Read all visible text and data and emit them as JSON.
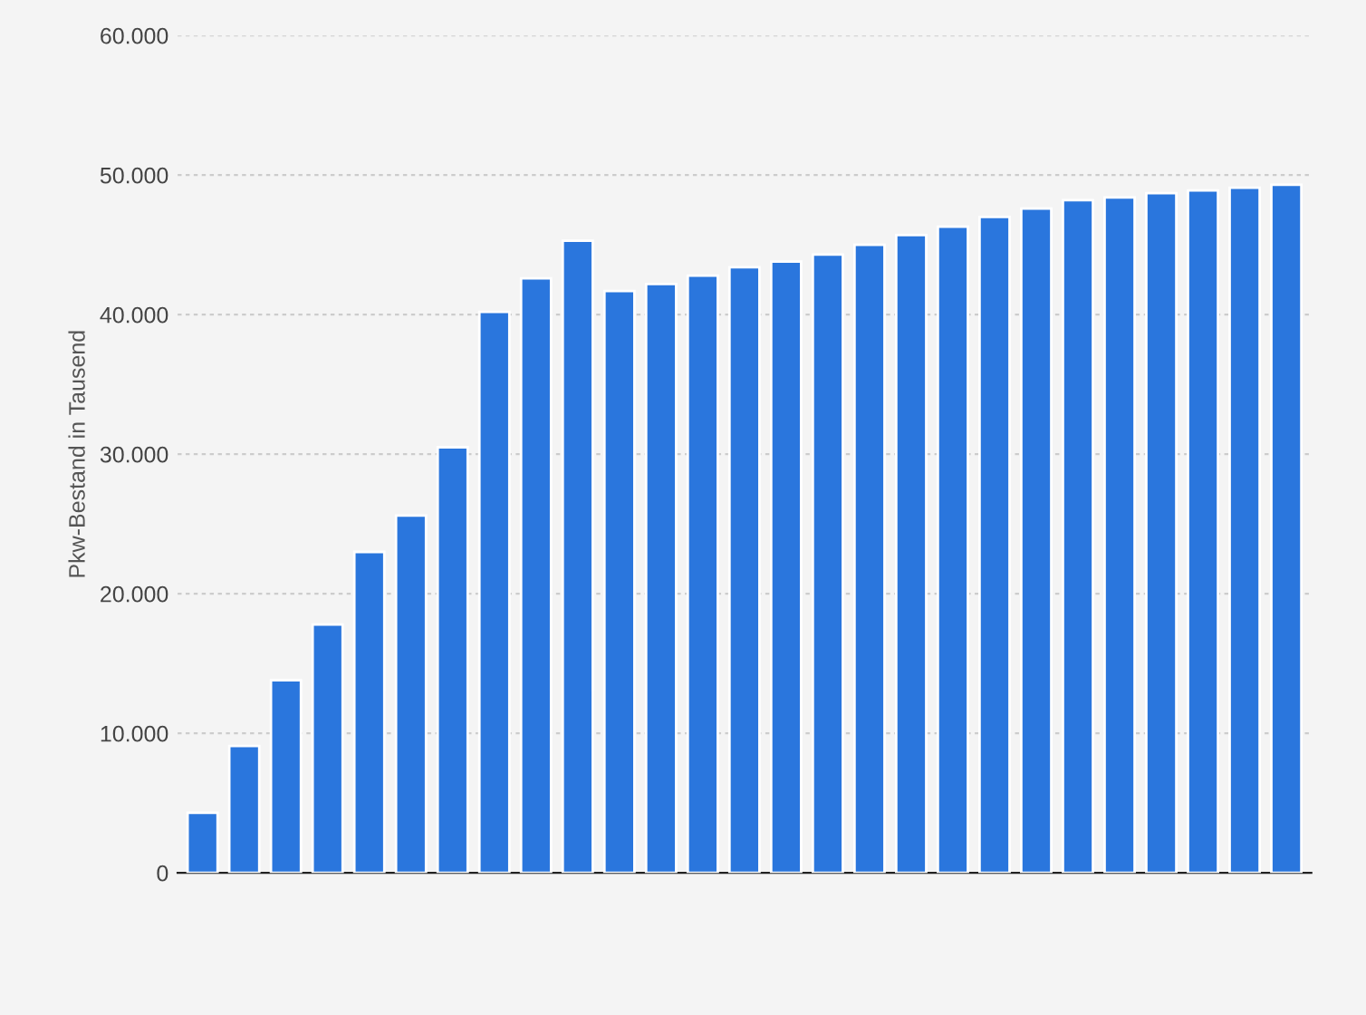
{
  "chart_data": {
    "type": "bar",
    "ylabel": "Pkw-Bestand in Tausend",
    "categories": [
      null,
      null,
      null,
      null,
      null,
      null,
      null,
      null,
      null,
      null,
      null,
      null,
      null,
      null,
      null,
      null,
      null,
      null,
      null,
      null,
      null,
      null,
      null,
      null,
      null,
      null,
      null
    ],
    "values": [
      4300,
      9100,
      13800,
      17800,
      23000,
      25600,
      30500,
      40200,
      42600,
      45300,
      41700,
      42200,
      42800,
      43400,
      43800,
      44300,
      45000,
      45700,
      46300,
      47000,
      47600,
      48200,
      48400,
      48700,
      48900,
      49100,
      49300
    ],
    "color": "#2a76dd",
    "ylim": [
      0,
      60000
    ],
    "yticks": [
      {
        "value": 0,
        "label": "0"
      },
      {
        "value": 10000,
        "label": "10.000"
      },
      {
        "value": 20000,
        "label": "20.000"
      },
      {
        "value": 30000,
        "label": "30.000"
      },
      {
        "value": 40000,
        "label": "40.000"
      },
      {
        "value": 50000,
        "label": "50.000"
      },
      {
        "value": 60000,
        "label": "60.000"
      }
    ],
    "grid": "y"
  }
}
